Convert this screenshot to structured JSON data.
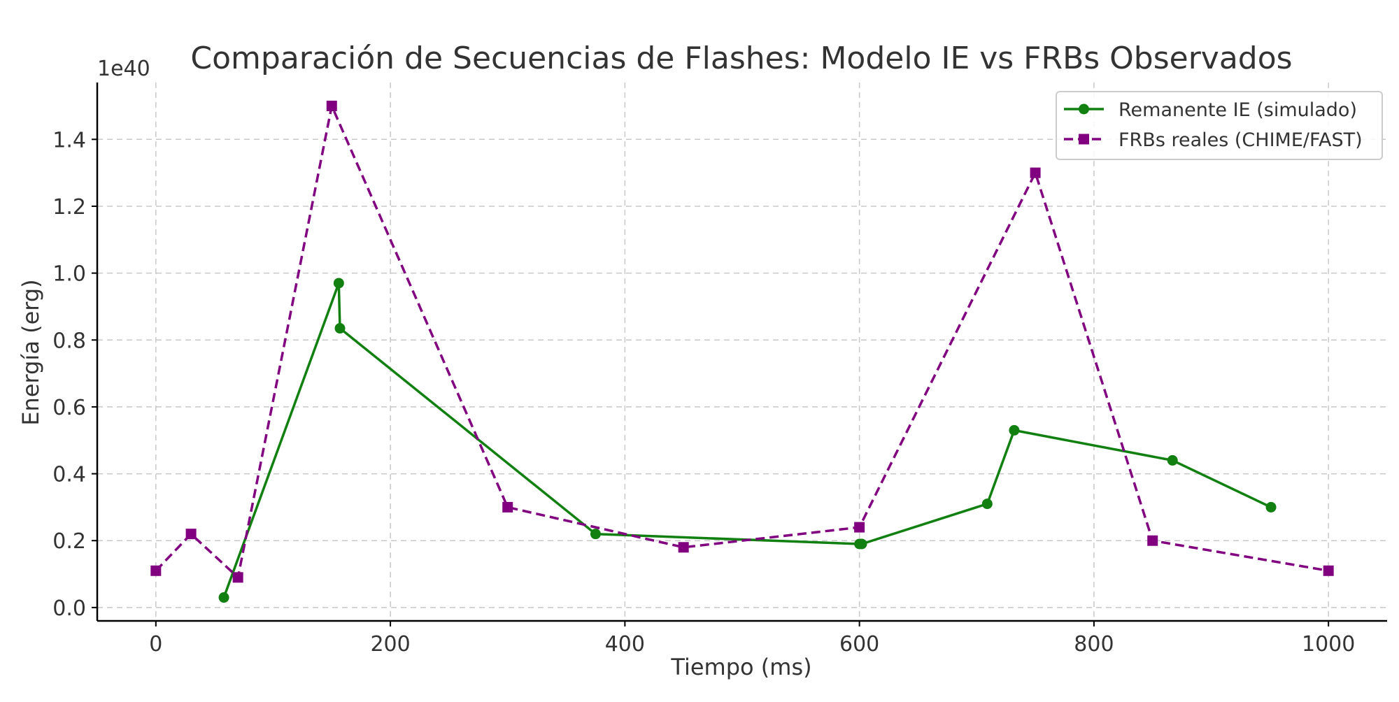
{
  "chart_data": {
    "type": "line",
    "title": "Comparación de Secuencias de Flashes: Modelo IE vs FRBs Observados",
    "xlabel": "Tiempo (ms)",
    "ylabel": "Energía (erg)",
    "y_offset_label": "1e40",
    "y_scale_factor": 1e+40,
    "xlim": [
      -50,
      1050
    ],
    "ylim": [
      -0.04,
      1.57
    ],
    "x_ticks": [
      0,
      200,
      400,
      600,
      800,
      1000
    ],
    "x_tick_labels": [
      "0",
      "200",
      "400",
      "600",
      "800",
      "1000"
    ],
    "y_ticks": [
      0.0,
      0.2,
      0.4,
      0.6,
      0.8,
      1.0,
      1.2,
      1.4
    ],
    "y_tick_labels": [
      "0.0",
      "0.2",
      "0.4",
      "0.6",
      "0.8",
      "1.0",
      "1.2",
      "1.4"
    ],
    "grid": true,
    "legend_position": "top-right",
    "series": [
      {
        "name": "Remanente IE (simulado)",
        "color": "#118011",
        "line_style": "solid",
        "marker": "circle",
        "x": [
          58,
          156,
          157,
          375,
          600,
          602,
          709,
          732,
          867,
          951
        ],
        "y": [
          0.03,
          0.97,
          0.835,
          0.22,
          0.19,
          0.19,
          0.31,
          0.53,
          0.44,
          0.3
        ]
      },
      {
        "name": "FRBs reales (CHIME/FAST)",
        "color": "#800080",
        "line_style": "dashed",
        "marker": "square",
        "x": [
          0,
          30,
          70,
          150,
          300,
          450,
          600,
          750,
          850,
          1000
        ],
        "y": [
          0.11,
          0.22,
          0.09,
          1.5,
          0.3,
          0.18,
          0.24,
          1.3,
          0.2,
          0.11
        ]
      }
    ]
  }
}
